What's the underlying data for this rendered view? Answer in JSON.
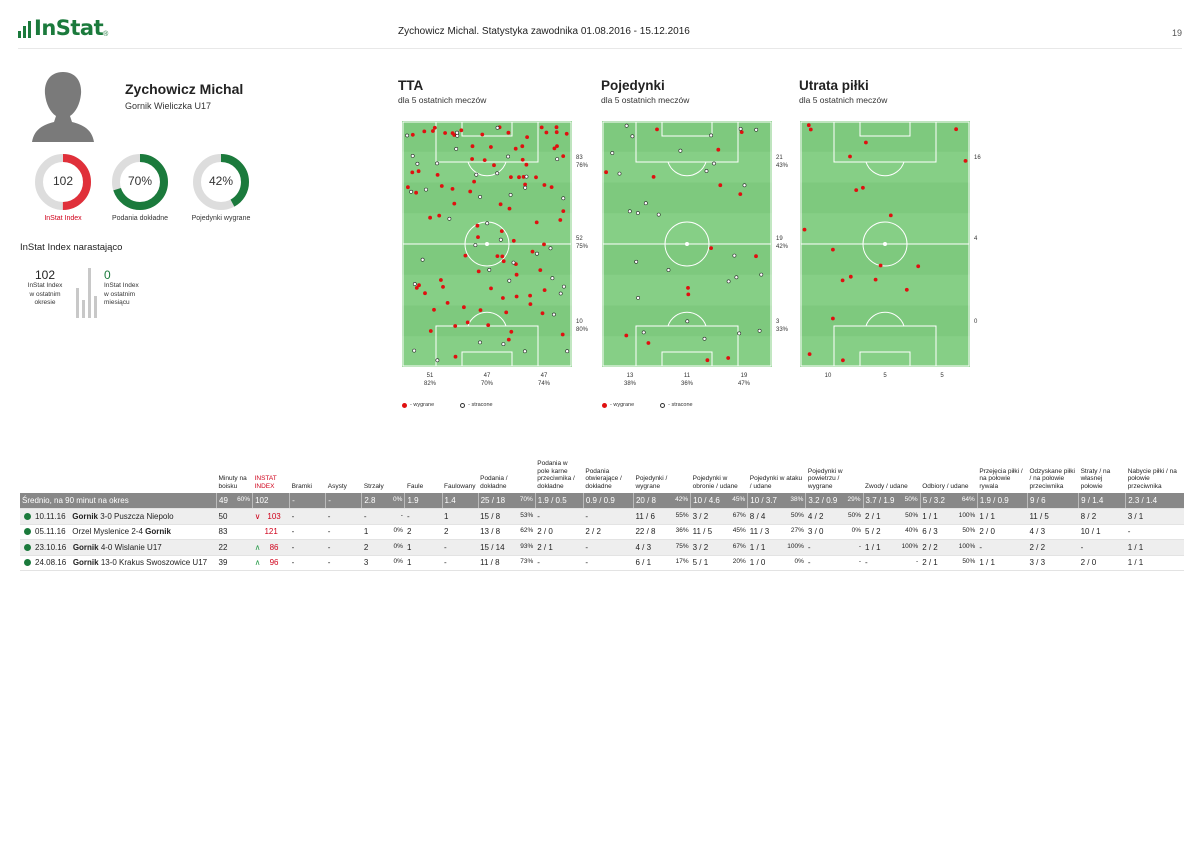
{
  "header": {
    "logo_text": "InStat",
    "logo_mark": "®",
    "title": "Zychowicz Michal. Statystyka zawodnika 01.08.2016 - 15.12.2016",
    "page": "19"
  },
  "player": {
    "name": "Zychowicz Michal",
    "team": "Gornik Wieliczka U17"
  },
  "gauges": [
    {
      "value_text": "102",
      "label": "InStat Index",
      "fraction": 0.5,
      "color": "#e0303a"
    },
    {
      "value_text": "70%",
      "label": "Podania dokładne",
      "fraction": 0.7,
      "color": "#1b7a3c"
    },
    {
      "value_text": "42%",
      "label": "Pojedynki wygrane",
      "fraction": 0.42,
      "color": "#1b7a3c"
    }
  ],
  "cumulative": {
    "title": "InStat Index narastająco",
    "left_value": "102",
    "left_label": [
      "InStat Index",
      "w ostatnim",
      "okresie"
    ],
    "right_value": "0",
    "right_label": [
      "InStat Index",
      "w ostatnim",
      "miesiącu"
    ]
  },
  "fields": [
    {
      "title": "TTA",
      "subtitle": "dla 5 ostatnich meczów",
      "side_labels": [
        [
          "83",
          "76%"
        ],
        [
          "52",
          "75%"
        ],
        [
          "10",
          "80%"
        ]
      ],
      "bottom_labels": [
        [
          "51",
          "82%"
        ],
        [
          "47",
          "70%"
        ],
        [
          "47",
          "74%"
        ]
      ],
      "legend_won": "- wygrane",
      "legend_lost": "- stracone"
    },
    {
      "title": "Pojedynki",
      "subtitle": "dla 5 ostatnich meczów",
      "side_labels": [
        [
          "21",
          "43%"
        ],
        [
          "19",
          "42%"
        ],
        [
          "3",
          "33%"
        ]
      ],
      "bottom_labels": [
        [
          "13",
          "38%"
        ],
        [
          "11",
          "36%"
        ],
        [
          "19",
          "47%"
        ]
      ],
      "legend_won": "- wygrane",
      "legend_lost": "- stracone"
    },
    {
      "title": "Utrata piłki",
      "subtitle": "dla 5 ostatnich meczów",
      "side_labels": [
        [
          "16"
        ],
        [
          "4"
        ],
        [
          "0"
        ]
      ],
      "bottom_labels": [
        [
          "10"
        ],
        [
          "5"
        ],
        [
          "5"
        ]
      ],
      "legend_won": "",
      "legend_lost": ""
    }
  ],
  "colors": {
    "brand_green": "#1b7a3c",
    "pitch": "#7ec97e",
    "won_dot": "#e01010",
    "accent_red": "#d0021b"
  },
  "table": {
    "headers": [
      "",
      "Minuty na boisku",
      "INSTAT INDEX",
      "Bramki",
      "Asysty",
      "Strzały",
      "Faule",
      "Faulowany",
      "Podania / dokładne",
      "Podania w pole karne przeciwnika / dokładne",
      "Podania otwierające / dokładne",
      "Pojedynki / wygrane",
      "Pojedynki w obronie / udane",
      "Pojedynki w ataku / udane",
      "Pojedynki w powietrzu / wygrane",
      "Zwody / udane",
      "Odbiory / udane",
      "Przejęcia piłki / na połowie rywala",
      "Odzyskane piłki / na połowie przeciwnika",
      "Straty / na własnej połowie",
      "Nabycie piłki / na połowie przeciwnika"
    ],
    "average": {
      "label": "Średnio, na 90 minut na okres",
      "cells": [
        [
          "49",
          "60%"
        ],
        [
          "102",
          ""
        ],
        [
          "-",
          ""
        ],
        [
          "-",
          ""
        ],
        [
          "2.8",
          "0%"
        ],
        [
          "1.9",
          ""
        ],
        [
          "1.4",
          ""
        ],
        [
          "25 / 18",
          "70%"
        ],
        [
          "1.9 / 0.5",
          ""
        ],
        [
          "0.9 / 0.9",
          ""
        ],
        [
          "20 / 8",
          "42%"
        ],
        [
          "10 / 4.6",
          "45%"
        ],
        [
          "10 / 3.7",
          "38%"
        ],
        [
          "3.2 / 0.9",
          "29%"
        ],
        [
          "3.7 / 1.9",
          "50%"
        ],
        [
          "5 / 3.2",
          "64%"
        ],
        [
          "1.9 / 0.9",
          ""
        ],
        [
          "9 / 6",
          ""
        ],
        [
          "9 / 1.4",
          ""
        ],
        [
          "2.3 / 1.4",
          ""
        ]
      ]
    },
    "rows": [
      {
        "date": "10.11.16",
        "team_a": "Gornik",
        "score": "3-0",
        "team_b": "Puszcza Niepolo",
        "bold_first": true,
        "index_trend": "down",
        "cells": [
          [
            "50",
            ""
          ],
          [
            "103",
            ""
          ],
          [
            "-",
            ""
          ],
          [
            "-",
            ""
          ],
          [
            "-",
            "-"
          ],
          [
            "-",
            ""
          ],
          [
            "1",
            ""
          ],
          [
            "15 / 8",
            "53%"
          ],
          [
            "-",
            ""
          ],
          [
            "-",
            ""
          ],
          [
            "11 / 6",
            "55%"
          ],
          [
            "3 / 2",
            "67%"
          ],
          [
            "8 / 4",
            "50%"
          ],
          [
            "4 / 2",
            "50%"
          ],
          [
            "2 / 1",
            "50%"
          ],
          [
            "1 / 1",
            "100%"
          ],
          [
            "1 / 1",
            ""
          ],
          [
            "11 / 5",
            ""
          ],
          [
            "8 / 2",
            ""
          ],
          [
            "3 / 1",
            ""
          ]
        ]
      },
      {
        "date": "05.11.16",
        "team_a": "Orzel Myslenice",
        "score": "2-4",
        "team_b": "Gornik",
        "bold_first": false,
        "index_trend": "",
        "cells": [
          [
            "83",
            ""
          ],
          [
            "121",
            ""
          ],
          [
            "-",
            ""
          ],
          [
            "-",
            ""
          ],
          [
            "1",
            "0%"
          ],
          [
            "2",
            ""
          ],
          [
            "2",
            ""
          ],
          [
            "13 / 8",
            "62%"
          ],
          [
            "2 / 0",
            ""
          ],
          [
            "2 / 2",
            ""
          ],
          [
            "22 / 8",
            "36%"
          ],
          [
            "11 / 5",
            "45%"
          ],
          [
            "11 / 3",
            "27%"
          ],
          [
            "3 / 0",
            "0%"
          ],
          [
            "5 / 2",
            "40%"
          ],
          [
            "6 / 3",
            "50%"
          ],
          [
            "2 / 0",
            ""
          ],
          [
            "4 / 3",
            ""
          ],
          [
            "10 / 1",
            ""
          ],
          [
            "-",
            ""
          ]
        ]
      },
      {
        "date": "23.10.16",
        "team_a": "Gornik",
        "score": "4-0",
        "team_b": "Wislanie U17",
        "bold_first": true,
        "index_trend": "up",
        "cells": [
          [
            "22",
            ""
          ],
          [
            "86",
            ""
          ],
          [
            "-",
            ""
          ],
          [
            "-",
            ""
          ],
          [
            "2",
            "0%"
          ],
          [
            "1",
            ""
          ],
          [
            "-",
            ""
          ],
          [
            "15 / 14",
            "93%"
          ],
          [
            "2 / 1",
            ""
          ],
          [
            "-",
            ""
          ],
          [
            "4 / 3",
            "75%"
          ],
          [
            "3 / 2",
            "67%"
          ],
          [
            "1 / 1",
            "100%"
          ],
          [
            "-",
            "-"
          ],
          [
            "1 / 1",
            "100%"
          ],
          [
            "2 / 2",
            "100%"
          ],
          [
            "-",
            ""
          ],
          [
            "2 / 2",
            ""
          ],
          [
            "-",
            ""
          ],
          [
            "1 / 1",
            ""
          ]
        ]
      },
      {
        "date": "24.08.16",
        "team_a": "Gornik",
        "score": "13-0",
        "team_b": "Krakus Swoszowice U17",
        "bold_first": true,
        "index_trend": "up",
        "cells": [
          [
            "39",
            ""
          ],
          [
            "96",
            ""
          ],
          [
            "-",
            ""
          ],
          [
            "-",
            ""
          ],
          [
            "3",
            "0%"
          ],
          [
            "1",
            ""
          ],
          [
            "-",
            ""
          ],
          [
            "11 / 8",
            "73%"
          ],
          [
            "-",
            ""
          ],
          [
            "-",
            ""
          ],
          [
            "6 / 1",
            "17%"
          ],
          [
            "5 / 1",
            "20%"
          ],
          [
            "1 / 0",
            "0%"
          ],
          [
            "-",
            "-"
          ],
          [
            "-",
            "-"
          ],
          [
            "2 / 1",
            "50%"
          ],
          [
            "1 / 1",
            ""
          ],
          [
            "3 / 3",
            ""
          ],
          [
            "2 / 0",
            ""
          ],
          [
            "1 / 1",
            ""
          ]
        ]
      }
    ]
  }
}
